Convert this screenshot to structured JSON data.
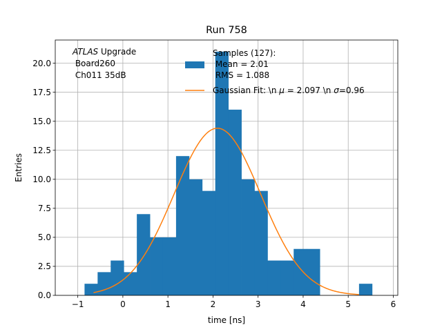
{
  "chart_data": {
    "type": "bar",
    "title": "Run 758",
    "xlabel": "time [ns]",
    "ylabel": "Entries",
    "xlim": [
      -1.5,
      6.1
    ],
    "ylim": [
      0,
      22
    ],
    "grid": true,
    "x_ticks": [
      -1,
      0,
      1,
      2,
      3,
      4,
      5,
      6
    ],
    "x_tick_labels": [
      "−1",
      "0",
      "1",
      "2",
      "3",
      "4",
      "5",
      "6"
    ],
    "y_ticks": [
      0,
      2.5,
      5,
      7.5,
      10,
      12.5,
      15,
      17.5,
      20
    ],
    "y_tick_labels": [
      "0.0",
      "2.5",
      "5.0",
      "7.5",
      "10.0",
      "12.5",
      "15.0",
      "17.5",
      "20.0"
    ],
    "histogram": {
      "name_lines": [
        "Samples (127):",
        " Mean = 2.01",
        " RMS = 1.088"
      ],
      "color": "#1f77b4",
      "bin_edges": [
        -0.85,
        -0.56,
        -0.27,
        0.02,
        0.31,
        0.6,
        0.89,
        1.18,
        1.47,
        1.76,
        2.05,
        2.34,
        2.63,
        2.92,
        3.21,
        3.5,
        3.79,
        4.08,
        4.37,
        4.66,
        4.95,
        5.24,
        5.53
      ],
      "counts": [
        1,
        2,
        3,
        2,
        7,
        5,
        5,
        12,
        10,
        9,
        21,
        16,
        10,
        9,
        3,
        3,
        4,
        4,
        0,
        0,
        0,
        1
      ]
    },
    "fit": {
      "name": "Gaussian Fit: \\n $\\mu$ = 2.097 \\n $\\sigma$=0.96",
      "color": "#ff7f0e",
      "amplitude": 14.4,
      "mu": 2.097,
      "sigma": 0.96,
      "x_range": [
        -0.65,
        5.24
      ]
    },
    "legend_position": "upper-center",
    "annotation": {
      "italic_part": "ATLAS",
      "line1_rest": " Upgrade",
      "line2": " Board260",
      "line3": " Ch011 35dB"
    }
  }
}
